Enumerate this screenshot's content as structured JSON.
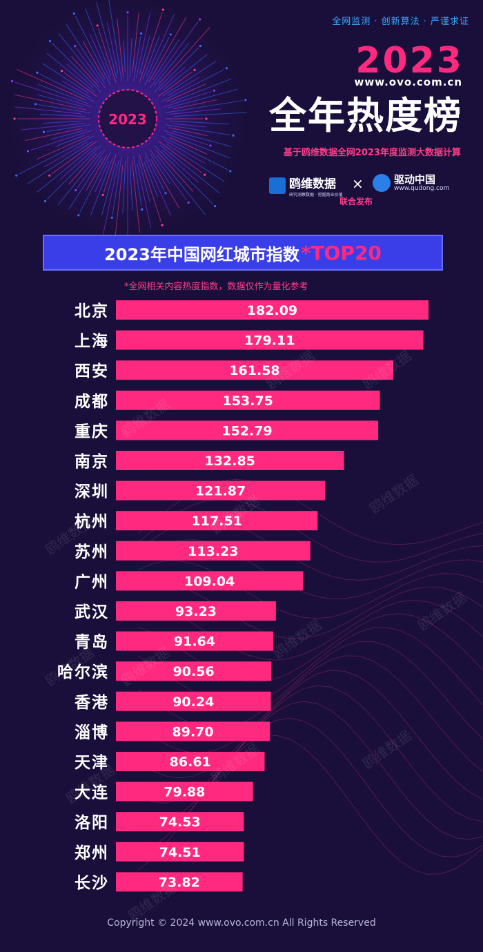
{
  "header": {
    "tagline": "全网监测 · 创新算法 · 严谨求证",
    "year": "2023",
    "url": "www.ovo.com.cn",
    "main_title": "全年热度榜",
    "subline": "基于鸥维数据全网2023年度监测大数据计算",
    "badge_text": "2023",
    "ovo_logo_text": "鸥维数据",
    "ovo_logo_small": "研究洞察数据 · 挖掘商业价值",
    "cross": "×",
    "qd_logo_text": "驱动中国",
    "qd_logo_url": "www.qudong.com",
    "joint_release": "联合发布"
  },
  "chart_data": {
    "type": "bar",
    "orientation": "horizontal",
    "title": "2023年中国网红城市指数",
    "title_suffix": "*TOP20",
    "note": "*全网相关内容热度指数，数据仅作为量化参考",
    "categories": [
      "北京",
      "上海",
      "西安",
      "成都",
      "重庆",
      "南京",
      "深圳",
      "杭州",
      "苏州",
      "广州",
      "武汉",
      "青岛",
      "哈尔滨",
      "香港",
      "淄博",
      "天津",
      "大连",
      "洛阳",
      "郑州",
      "长沙"
    ],
    "values": [
      182.09,
      179.11,
      161.58,
      153.75,
      152.79,
      132.85,
      121.87,
      117.51,
      113.23,
      109.04,
      93.23,
      91.64,
      90.56,
      90.24,
      89.7,
      86.61,
      79.88,
      74.53,
      74.51,
      73.82
    ],
    "value_labels": [
      "182.09",
      "179.11",
      "161.58",
      "153.75",
      "152.79",
      "132.85",
      "121.87",
      "117.51",
      "113.23",
      "109.04",
      "93.23",
      "91.64",
      "90.56",
      "90.24",
      "89.70",
      "86.61",
      "79.88",
      "74.53",
      "74.51",
      "73.82"
    ],
    "bar_color": "#ff2a7f",
    "xlim": [
      0,
      182.09
    ]
  },
  "watermark": "鸥维数据",
  "footer": "Copyright © 2024  www.ovo.com.cn All Rights Reserved",
  "colors": {
    "background": "#1a0f3a",
    "accent": "#ff2a7f",
    "banner": "#3a3ee8"
  }
}
